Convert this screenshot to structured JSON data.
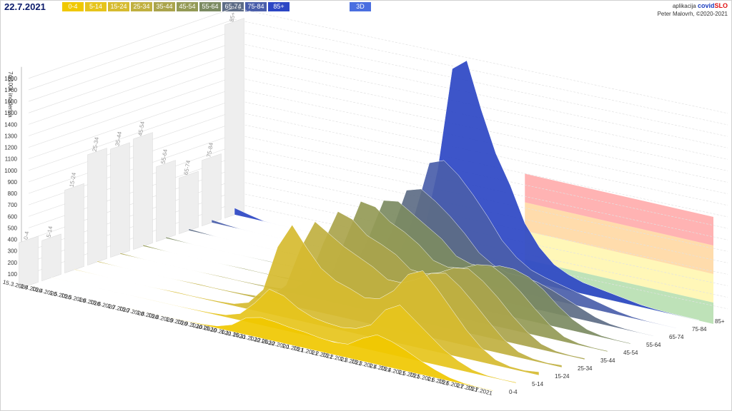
{
  "header": {
    "date": "22.7.2021",
    "mode_button": "3D",
    "app_label": "aplikacija",
    "brand_main": "covid",
    "brand_accent": "SLO",
    "author": "Peter Malovrh, ©2020-2021"
  },
  "chart_data": [
    {
      "type": "area3d",
      "y_label": "7d/100k incidenca",
      "categories": [
        "15.3.2020",
        "1.4.2020",
        "15.4.2020",
        "1.5.2020",
        "15.5.2020",
        "1.6.2020",
        "15.6.2020",
        "1.7.2020",
        "15.7.2020",
        "1.8.2020",
        "15.8.2020",
        "1.9.2020",
        "15.9.2020",
        "1.10.2020",
        "15.10.2020",
        "1.11.2020",
        "15.11.2020",
        "1.12.2020",
        "15.12.2020",
        "1.1.2021",
        "15.1.2021",
        "1.2.2021",
        "15.2.2021",
        "1.3.2021",
        "15.3.2021",
        "1.4.2021",
        "15.4.2021",
        "1.5.2021",
        "15.5.2021",
        "1.6.2021",
        "15.6.2021",
        "1.7.2021",
        "15.7.2021"
      ],
      "ylim": [
        0,
        1900
      ],
      "yticks": [
        100,
        200,
        300,
        400,
        500,
        600,
        700,
        800,
        900,
        1000,
        1100,
        1200,
        1300,
        1400,
        1500,
        1600,
        1700,
        1800
      ],
      "series": [
        {
          "name": "0-4",
          "color": "#f0c800",
          "values": [
            2,
            1,
            0,
            0,
            0,
            0,
            1,
            2,
            2,
            2,
            3,
            4,
            8,
            20,
            60,
            150,
            180,
            170,
            150,
            140,
            120,
            110,
            120,
            200,
            260,
            230,
            180,
            120,
            70,
            30,
            10,
            5,
            5
          ]
        },
        {
          "name": "5-14",
          "color": "#e6c41c",
          "values": [
            2,
            1,
            0,
            0,
            0,
            0,
            2,
            3,
            3,
            4,
            6,
            10,
            20,
            60,
            180,
            330,
            300,
            220,
            170,
            150,
            140,
            160,
            220,
            380,
            450,
            350,
            250,
            150,
            80,
            30,
            10,
            6,
            8
          ]
        },
        {
          "name": "15-24",
          "color": "#d6bb30",
          "values": [
            5,
            3,
            1,
            0,
            0,
            1,
            4,
            8,
            6,
            8,
            12,
            20,
            60,
            200,
            600,
            820,
            650,
            500,
            420,
            380,
            330,
            350,
            450,
            620,
            680,
            550,
            400,
            250,
            130,
            50,
            20,
            15,
            30
          ]
        },
        {
          "name": "25-34",
          "color": "#c0b040",
          "values": [
            8,
            4,
            1,
            0,
            0,
            1,
            5,
            8,
            6,
            8,
            12,
            20,
            50,
            170,
            520,
            780,
            700,
            620,
            560,
            500,
            420,
            420,
            480,
            560,
            590,
            500,
            380,
            250,
            130,
            50,
            20,
            12,
            20
          ]
        },
        {
          "name": "35-44",
          "color": "#aaa44c",
          "values": [
            10,
            5,
            1,
            0,
            0,
            1,
            4,
            6,
            5,
            7,
            10,
            18,
            45,
            150,
            500,
            800,
            760,
            650,
            600,
            540,
            440,
            430,
            470,
            540,
            560,
            480,
            370,
            240,
            130,
            50,
            18,
            10,
            12
          ]
        },
        {
          "name": "45-54",
          "color": "#949a56",
          "values": [
            12,
            6,
            1,
            0,
            0,
            1,
            4,
            6,
            5,
            6,
            10,
            16,
            40,
            140,
            480,
            820,
            800,
            700,
            640,
            560,
            450,
            420,
            440,
            500,
            520,
            450,
            350,
            230,
            120,
            45,
            16,
            8,
            8
          ]
        },
        {
          "name": "55-64",
          "color": "#7c8b62",
          "values": [
            12,
            6,
            1,
            0,
            0,
            1,
            3,
            5,
            4,
            5,
            8,
            14,
            35,
            120,
            420,
            760,
            780,
            700,
            620,
            540,
            420,
            380,
            380,
            420,
            420,
            380,
            300,
            190,
            100,
            40,
            14,
            7,
            6
          ]
        },
        {
          "name": "65-74",
          "color": "#5d6c86",
          "values": [
            15,
            8,
            1,
            0,
            0,
            1,
            2,
            4,
            3,
            4,
            6,
            12,
            30,
            110,
            400,
            780,
            820,
            740,
            640,
            520,
            380,
            300,
            260,
            260,
            240,
            200,
            150,
            100,
            50,
            20,
            8,
            4,
            3
          ]
        },
        {
          "name": "75-84",
          "color": "#4a5eaa",
          "values": [
            25,
            12,
            2,
            0,
            0,
            1,
            2,
            3,
            3,
            4,
            6,
            12,
            30,
            130,
            480,
            950,
            1000,
            900,
            760,
            600,
            420,
            300,
            220,
            180,
            150,
            120,
            90,
            60,
            30,
            12,
            5,
            3,
            2
          ]
        },
        {
          "name": "85+",
          "color": "#2c46c4",
          "values": [
            60,
            30,
            4,
            0,
            0,
            1,
            3,
            4,
            3,
            5,
            8,
            15,
            40,
            200,
            800,
            1700,
            1800,
            1400,
            1050,
            800,
            500,
            320,
            200,
            140,
            100,
            80,
            60,
            40,
            20,
            10,
            5,
            3,
            2
          ]
        }
      ]
    },
    {
      "type": "wallbar",
      "color": "#eeeeee",
      "categories": [
        "0-4",
        "5-14",
        "15-24",
        "25-34",
        "35-44",
        "45-54",
        "55-64",
        "65-74",
        "75-84",
        "85+"
      ],
      "values": [
        400,
        350,
        720,
        960,
        940,
        960,
        650,
        485,
        570,
        1680
      ]
    }
  ]
}
